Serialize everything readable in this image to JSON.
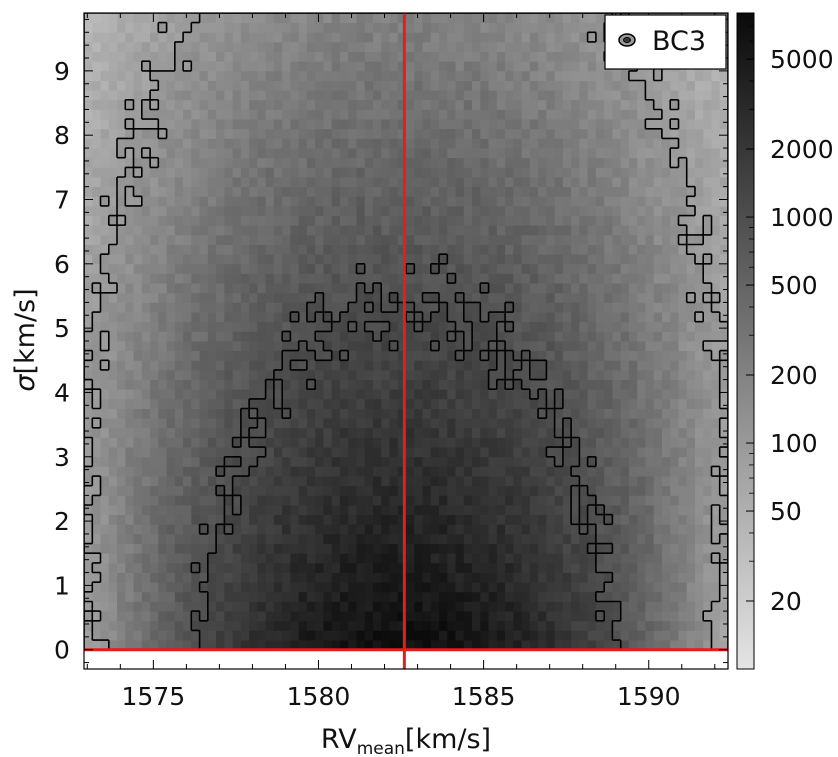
{
  "chart_data": {
    "type": "heatmap",
    "title": "",
    "xlabel": {
      "main": "RV",
      "sub": "mean",
      "unit": "[km/s]"
    },
    "ylabel": {
      "symbol": "σ",
      "unit": "[km/s]"
    },
    "xlim": [
      1572.9,
      1592.4
    ],
    "ylim": [
      -0.3,
      9.9
    ],
    "x_ticks": [
      1575,
      1580,
      1585,
      1590
    ],
    "y_ticks": [
      0,
      1,
      2,
      3,
      4,
      5,
      6,
      7,
      8,
      9
    ],
    "colorbar": {
      "scale": "log",
      "range": [
        10,
        8000
      ],
      "ticks": [
        20,
        50,
        100,
        200,
        500,
        1000,
        2000,
        5000
      ],
      "colormap": [
        "#e4e4e4",
        "#0a0a0a"
      ]
    },
    "reference_lines": {
      "vertical_x": 1582.6,
      "horizontal_y": 0.0,
      "color": "#e0201a"
    },
    "density_model": {
      "peak_counts": 7000,
      "center_rv": 1582.6,
      "rv_spread_at_sigma0": 3.2,
      "rv_spread_growth_per_kms": 0.2,
      "sigma_decay_scale": 2.8
    },
    "contour_levels": [
      20,
      100,
      1000
    ],
    "legend": {
      "label": "BC3",
      "position": "top-right"
    },
    "grid": false
  }
}
